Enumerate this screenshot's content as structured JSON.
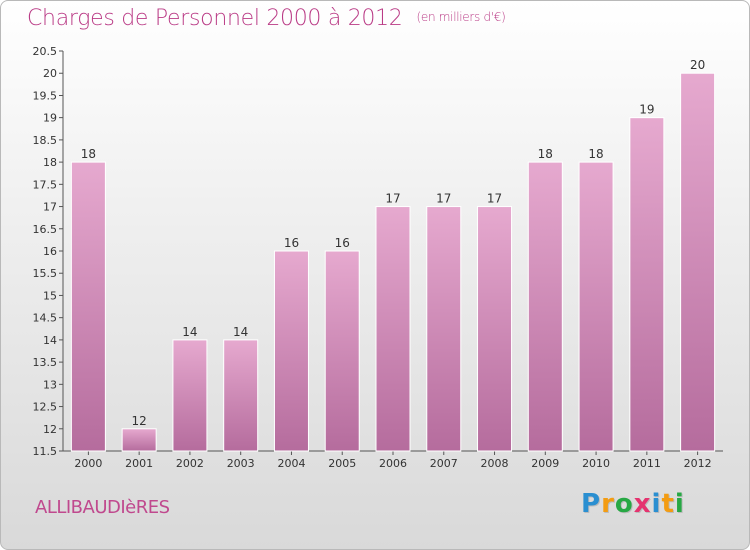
{
  "header": {
    "title": "Charges de Personnel 2000 à 2012",
    "subtitle": "(en milliers d'€)"
  },
  "footer": {
    "commune": "ALLIBAUDIèRES",
    "brand_letters": [
      {
        "ch": "P",
        "color": "#2a8fd1"
      },
      {
        "ch": "r",
        "color": "#f39c12"
      },
      {
        "ch": "o",
        "color": "#27a844"
      },
      {
        "ch": "x",
        "color": "#e5336f"
      },
      {
        "ch": "i",
        "color": "#2a8fd1"
      },
      {
        "ch": "t",
        "color": "#f39c12"
      },
      {
        "ch": "i",
        "color": "#27a844"
      }
    ]
  },
  "chart_data": {
    "type": "bar",
    "categories": [
      "2000",
      "2001",
      "2002",
      "2003",
      "2004",
      "2005",
      "2006",
      "2007",
      "2008",
      "2009",
      "2010",
      "2011",
      "2012"
    ],
    "values": [
      18,
      12,
      14,
      14,
      16,
      16,
      17,
      17,
      17,
      18,
      18,
      19,
      20
    ],
    "value_labels": [
      "18",
      "12",
      "14",
      "14",
      "16",
      "16",
      "17",
      "17",
      "17",
      "18",
      "18",
      "19",
      "20"
    ],
    "yticks": [
      "11.5",
      "12",
      "12.5",
      "13",
      "13.5",
      "14",
      "14.5",
      "15",
      "15.5",
      "16",
      "16.5",
      "17",
      "17.5",
      "18",
      "18.5",
      "19",
      "19.5",
      "20",
      "20.5"
    ],
    "ylim": [
      11.5,
      20.5
    ],
    "bar_color_top": "#e6a9cf",
    "bar_color_bottom": "#b56c9d",
    "grid": false
  }
}
